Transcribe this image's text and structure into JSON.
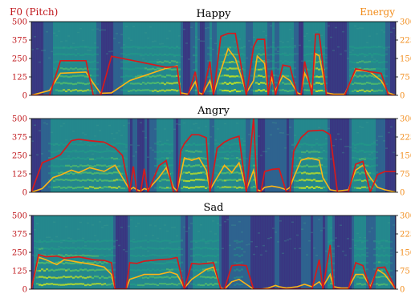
{
  "header": {
    "left_label": "F0 (Pitch)",
    "right_label": "Energy"
  },
  "colors": {
    "pitch": "#d7191c",
    "energy": "#fdb515",
    "left_axis_text": "#c0181d",
    "right_axis_text": "#f28c1a"
  },
  "chart_data": [
    {
      "type": "line",
      "title": "Happy",
      "background": "spectrogram",
      "x": [
        0,
        5,
        8,
        15,
        17,
        19,
        22,
        27,
        37,
        40,
        41,
        43,
        45,
        46,
        47,
        49,
        50,
        52,
        54,
        56,
        59,
        61,
        62,
        64,
        65,
        66,
        67,
        69,
        71,
        73,
        74,
        75,
        77,
        78,
        79,
        81,
        83,
        86,
        89,
        91,
        93,
        96,
        98,
        100
      ],
      "series": [
        {
          "name": "F0 (Pitch)",
          "axis": "left",
          "values": [
            0,
            0,
            235,
            235,
            0,
            0,
            265,
            240,
            190,
            195,
            0,
            0,
            160,
            0,
            0,
            230,
            0,
            400,
            420,
            420,
            0,
            330,
            380,
            380,
            0,
            170,
            0,
            205,
            195,
            0,
            0,
            230,
            0,
            415,
            415,
            0,
            0,
            0,
            180,
            170,
            160,
            150,
            0,
            0
          ]
        },
        {
          "name": "Energy",
          "axis": "right",
          "values": [
            0,
            20,
            90,
            95,
            50,
            8,
            10,
            60,
            110,
            120,
            10,
            5,
            55,
            10,
            5,
            60,
            5,
            100,
            190,
            150,
            10,
            60,
            160,
            130,
            10,
            70,
            20,
            80,
            60,
            10,
            5,
            90,
            30,
            170,
            160,
            10,
            5,
            5,
            100,
            100,
            95,
            60,
            10,
            0
          ]
        }
      ],
      "ylim_left": [
        0,
        500
      ],
      "yticks_left": [
        "0",
        "125",
        "250",
        "375",
        "500"
      ],
      "ylim_right": [
        0,
        300
      ],
      "yticks_right": [
        "0",
        "75",
        "150",
        "225",
        "300"
      ]
    },
    {
      "type": "line",
      "title": "Angry",
      "background": "spectrogram",
      "x": [
        0,
        3,
        6,
        8,
        11,
        13,
        16,
        20,
        23,
        25,
        27,
        28,
        29,
        30,
        31,
        32,
        35,
        37,
        39,
        40,
        41,
        42,
        44,
        46,
        48,
        49,
        51,
        53,
        55,
        57,
        59,
        61,
        62,
        63,
        64,
        66,
        68,
        70,
        71,
        72,
        74,
        76,
        79,
        80,
        82,
        84,
        87,
        89,
        91,
        93,
        95,
        97,
        100
      ],
      "series": [
        {
          "name": "F0 (Pitch)",
          "axis": "left",
          "values": [
            0,
            200,
            230,
            255,
            350,
            360,
            350,
            340,
            300,
            250,
            0,
            175,
            0,
            0,
            160,
            0,
            180,
            215,
            0,
            0,
            280,
            330,
            390,
            390,
            370,
            0,
            300,
            340,
            365,
            380,
            0,
            500,
            0,
            0,
            140,
            155,
            160,
            0,
            0,
            280,
            370,
            415,
            420,
            420,
            390,
            0,
            0,
            190,
            210,
            0,
            120,
            140,
            140
          ]
        },
        {
          "name": "Energy",
          "axis": "right",
          "values": [
            0,
            15,
            60,
            70,
            90,
            80,
            100,
            85,
            110,
            60,
            10,
            20,
            10,
            5,
            15,
            10,
            60,
            100,
            20,
            5,
            70,
            140,
            130,
            140,
            90,
            10,
            60,
            110,
            80,
            120,
            10,
            90,
            10,
            5,
            20,
            25,
            20,
            10,
            20,
            60,
            130,
            140,
            130,
            60,
            10,
            5,
            10,
            90,
            110,
            60,
            20,
            10,
            0
          ]
        }
      ],
      "ylim_left": [
        0,
        500
      ],
      "yticks_left": [
        "0",
        "125",
        "250",
        "375",
        "500"
      ],
      "ylim_right": [
        0,
        300
      ],
      "yticks_right": [
        "0",
        "75",
        "150",
        "225",
        "300"
      ]
    },
    {
      "type": "line",
      "title": "Sad",
      "background": "spectrogram",
      "x": [
        0,
        2,
        4,
        7,
        9,
        13,
        17,
        20,
        22,
        23,
        26,
        27,
        29,
        31,
        35,
        38,
        40,
        42,
        44,
        46,
        48,
        50,
        52,
        53,
        55,
        57,
        59,
        61,
        63,
        65,
        67,
        68,
        70,
        73,
        75,
        77,
        79,
        80,
        82,
        83,
        85,
        87,
        89,
        91,
        93,
        95,
        97,
        100
      ],
      "series": [
        {
          "name": "F0 (Pitch)",
          "axis": "left",
          "values": [
            0,
            235,
            220,
            225,
            210,
            220,
            200,
            195,
            180,
            0,
            0,
            180,
            175,
            190,
            200,
            205,
            215,
            0,
            175,
            170,
            175,
            180,
            0,
            0,
            160,
            165,
            160,
            0,
            0,
            0,
            0,
            0,
            0,
            0,
            0,
            0,
            200,
            0,
            300,
            0,
            0,
            0,
            180,
            160,
            0,
            145,
            150,
            0
          ]
        },
        {
          "name": "Energy",
          "axis": "right",
          "values": [
            0,
            130,
            120,
            100,
            120,
            110,
            100,
            90,
            60,
            0,
            0,
            40,
            50,
            60,
            60,
            70,
            60,
            5,
            40,
            60,
            80,
            90,
            5,
            0,
            30,
            40,
            20,
            0,
            0,
            5,
            15,
            10,
            5,
            10,
            20,
            10,
            30,
            10,
            60,
            10,
            5,
            5,
            60,
            60,
            10,
            80,
            60,
            0
          ]
        }
      ],
      "ylim_left": [
        0,
        500
      ],
      "yticks_left": [
        "0",
        "125",
        "250",
        "375",
        "500"
      ],
      "ylim_right": [
        0,
        300
      ],
      "yticks_right": [
        "0",
        "75",
        "150",
        "225",
        "300"
      ]
    }
  ]
}
